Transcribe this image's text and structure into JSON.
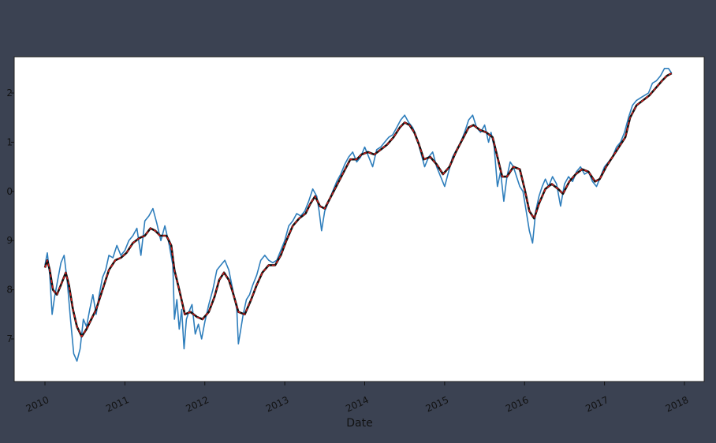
{
  "chart_data": {
    "type": "line",
    "title": "",
    "xlabel": "Date",
    "ylabel": "",
    "x_tick_labels": [
      "2010",
      "2011",
      "2012",
      "2013",
      "2014",
      "2015",
      "2016",
      "2017",
      "2018"
    ],
    "x_range": [
      2010.0,
      2018.0
    ],
    "y_tick_labels": [
      "7",
      "8",
      "9",
      "0",
      "1",
      "2"
    ],
    "y_range": [
      6.4,
      12.9
    ],
    "grid": false,
    "legend": "none",
    "series": [
      {
        "color": "#2e7ebc",
        "style": "solid",
        "points": [
          [
            2010.0,
            8.5
          ],
          [
            2010.03,
            8.75
          ],
          [
            2010.06,
            8.3
          ],
          [
            2010.09,
            7.5
          ],
          [
            2010.12,
            7.85
          ],
          [
            2010.16,
            8.2
          ],
          [
            2010.2,
            8.55
          ],
          [
            2010.24,
            8.7
          ],
          [
            2010.28,
            8.15
          ],
          [
            2010.32,
            7.4
          ],
          [
            2010.36,
            6.7
          ],
          [
            2010.4,
            6.55
          ],
          [
            2010.44,
            6.8
          ],
          [
            2010.48,
            7.4
          ],
          [
            2010.52,
            7.25
          ],
          [
            2010.56,
            7.6
          ],
          [
            2010.6,
            7.9
          ],
          [
            2010.64,
            7.5
          ],
          [
            2010.68,
            7.9
          ],
          [
            2010.72,
            8.25
          ],
          [
            2010.76,
            8.4
          ],
          [
            2010.8,
            8.7
          ],
          [
            2010.85,
            8.65
          ],
          [
            2010.9,
            8.9
          ],
          [
            2010.95,
            8.7
          ],
          [
            2011.0,
            8.8
          ],
          [
            2011.05,
            9.0
          ],
          [
            2011.1,
            9.1
          ],
          [
            2011.15,
            9.25
          ],
          [
            2011.2,
            8.7
          ],
          [
            2011.25,
            9.4
          ],
          [
            2011.3,
            9.5
          ],
          [
            2011.35,
            9.65
          ],
          [
            2011.4,
            9.35
          ],
          [
            2011.45,
            9.0
          ],
          [
            2011.5,
            9.3
          ],
          [
            2011.55,
            8.95
          ],
          [
            2011.6,
            8.5
          ],
          [
            2011.62,
            7.4
          ],
          [
            2011.65,
            7.8
          ],
          [
            2011.68,
            7.2
          ],
          [
            2011.71,
            7.6
          ],
          [
            2011.74,
            6.8
          ],
          [
            2011.77,
            7.4
          ],
          [
            2011.8,
            7.55
          ],
          [
            2011.84,
            7.7
          ],
          [
            2011.88,
            7.1
          ],
          [
            2011.92,
            7.3
          ],
          [
            2011.96,
            7.0
          ],
          [
            2012.0,
            7.35
          ],
          [
            2012.05,
            7.7
          ],
          [
            2012.1,
            8.0
          ],
          [
            2012.15,
            8.4
          ],
          [
            2012.2,
            8.5
          ],
          [
            2012.25,
            8.6
          ],
          [
            2012.3,
            8.4
          ],
          [
            2012.35,
            8.0
          ],
          [
            2012.4,
            7.6
          ],
          [
            2012.42,
            6.9
          ],
          [
            2012.45,
            7.2
          ],
          [
            2012.48,
            7.5
          ],
          [
            2012.52,
            7.8
          ],
          [
            2012.56,
            7.9
          ],
          [
            2012.6,
            8.1
          ],
          [
            2012.65,
            8.3
          ],
          [
            2012.7,
            8.6
          ],
          [
            2012.75,
            8.7
          ],
          [
            2012.8,
            8.6
          ],
          [
            2012.85,
            8.55
          ],
          [
            2012.9,
            8.6
          ],
          [
            2012.95,
            8.8
          ],
          [
            2013.0,
            9.0
          ],
          [
            2013.05,
            9.3
          ],
          [
            2013.1,
            9.4
          ],
          [
            2013.15,
            9.55
          ],
          [
            2013.2,
            9.5
          ],
          [
            2013.25,
            9.6
          ],
          [
            2013.3,
            9.8
          ],
          [
            2013.35,
            10.05
          ],
          [
            2013.4,
            9.9
          ],
          [
            2013.43,
            9.6
          ],
          [
            2013.46,
            9.2
          ],
          [
            2013.5,
            9.6
          ],
          [
            2013.55,
            9.8
          ],
          [
            2013.6,
            10.0
          ],
          [
            2013.65,
            10.2
          ],
          [
            2013.7,
            10.35
          ],
          [
            2013.75,
            10.55
          ],
          [
            2013.8,
            10.7
          ],
          [
            2013.85,
            10.8
          ],
          [
            2013.9,
            10.6
          ],
          [
            2013.95,
            10.7
          ],
          [
            2014.0,
            10.9
          ],
          [
            2014.05,
            10.7
          ],
          [
            2014.1,
            10.5
          ],
          [
            2014.15,
            10.85
          ],
          [
            2014.2,
            10.9
          ],
          [
            2014.25,
            11.0
          ],
          [
            2014.3,
            11.1
          ],
          [
            2014.35,
            11.15
          ],
          [
            2014.4,
            11.3
          ],
          [
            2014.45,
            11.45
          ],
          [
            2014.5,
            11.55
          ],
          [
            2014.55,
            11.4
          ],
          [
            2014.6,
            11.3
          ],
          [
            2014.65,
            11.1
          ],
          [
            2014.7,
            10.8
          ],
          [
            2014.75,
            10.5
          ],
          [
            2014.8,
            10.7
          ],
          [
            2014.85,
            10.8
          ],
          [
            2014.9,
            10.5
          ],
          [
            2014.95,
            10.3
          ],
          [
            2015.0,
            10.1
          ],
          [
            2015.05,
            10.4
          ],
          [
            2015.1,
            10.7
          ],
          [
            2015.15,
            10.85
          ],
          [
            2015.2,
            11.0
          ],
          [
            2015.25,
            11.2
          ],
          [
            2015.3,
            11.45
          ],
          [
            2015.35,
            11.55
          ],
          [
            2015.4,
            11.3
          ],
          [
            2015.45,
            11.2
          ],
          [
            2015.5,
            11.35
          ],
          [
            2015.55,
            11.0
          ],
          [
            2015.58,
            11.2
          ],
          [
            2015.62,
            10.9
          ],
          [
            2015.66,
            10.1
          ],
          [
            2015.7,
            10.4
          ],
          [
            2015.74,
            9.8
          ],
          [
            2015.78,
            10.3
          ],
          [
            2015.82,
            10.6
          ],
          [
            2015.86,
            10.5
          ],
          [
            2015.9,
            10.3
          ],
          [
            2015.94,
            10.1
          ],
          [
            2015.98,
            10.0
          ],
          [
            2016.02,
            9.6
          ],
          [
            2016.06,
            9.2
          ],
          [
            2016.1,
            8.95
          ],
          [
            2016.14,
            9.6
          ],
          [
            2016.18,
            9.9
          ],
          [
            2016.22,
            10.1
          ],
          [
            2016.26,
            10.25
          ],
          [
            2016.3,
            10.1
          ],
          [
            2016.35,
            10.3
          ],
          [
            2016.4,
            10.15
          ],
          [
            2016.45,
            9.7
          ],
          [
            2016.5,
            10.15
          ],
          [
            2016.55,
            10.3
          ],
          [
            2016.6,
            10.2
          ],
          [
            2016.65,
            10.4
          ],
          [
            2016.7,
            10.5
          ],
          [
            2016.75,
            10.35
          ],
          [
            2016.8,
            10.4
          ],
          [
            2016.85,
            10.2
          ],
          [
            2016.9,
            10.1
          ],
          [
            2016.95,
            10.3
          ],
          [
            2017.0,
            10.5
          ],
          [
            2017.05,
            10.6
          ],
          [
            2017.1,
            10.7
          ],
          [
            2017.15,
            10.9
          ],
          [
            2017.2,
            11.0
          ],
          [
            2017.25,
            11.2
          ],
          [
            2017.3,
            11.5
          ],
          [
            2017.35,
            11.75
          ],
          [
            2017.4,
            11.85
          ],
          [
            2017.45,
            11.9
          ],
          [
            2017.5,
            11.95
          ],
          [
            2017.55,
            12.0
          ],
          [
            2017.6,
            12.2
          ],
          [
            2017.65,
            12.25
          ],
          [
            2017.7,
            12.35
          ],
          [
            2017.75,
            12.5
          ],
          [
            2017.8,
            12.5
          ],
          [
            2017.84,
            12.4
          ]
        ]
      },
      {
        "color": "#d61c1c",
        "style": "dashed-over-black",
        "points": [
          [
            2010.0,
            8.45
          ],
          [
            2010.03,
            8.6
          ],
          [
            2010.06,
            8.4
          ],
          [
            2010.1,
            8.0
          ],
          [
            2010.15,
            7.9
          ],
          [
            2010.2,
            8.1
          ],
          [
            2010.26,
            8.35
          ],
          [
            2010.3,
            8.1
          ],
          [
            2010.35,
            7.6
          ],
          [
            2010.4,
            7.25
          ],
          [
            2010.46,
            7.05
          ],
          [
            2010.52,
            7.2
          ],
          [
            2010.58,
            7.4
          ],
          [
            2010.64,
            7.6
          ],
          [
            2010.72,
            8.0
          ],
          [
            2010.8,
            8.4
          ],
          [
            2010.88,
            8.6
          ],
          [
            2010.95,
            8.65
          ],
          [
            2011.02,
            8.75
          ],
          [
            2011.1,
            8.95
          ],
          [
            2011.18,
            9.05
          ],
          [
            2011.25,
            9.1
          ],
          [
            2011.32,
            9.25
          ],
          [
            2011.38,
            9.2
          ],
          [
            2011.44,
            9.1
          ],
          [
            2011.52,
            9.1
          ],
          [
            2011.58,
            8.9
          ],
          [
            2011.62,
            8.4
          ],
          [
            2011.68,
            8.0
          ],
          [
            2011.75,
            7.5
          ],
          [
            2011.82,
            7.55
          ],
          [
            2011.9,
            7.45
          ],
          [
            2011.97,
            7.4
          ],
          [
            2012.05,
            7.55
          ],
          [
            2012.12,
            7.85
          ],
          [
            2012.18,
            8.2
          ],
          [
            2012.24,
            8.35
          ],
          [
            2012.3,
            8.2
          ],
          [
            2012.35,
            7.95
          ],
          [
            2012.42,
            7.55
          ],
          [
            2012.5,
            7.5
          ],
          [
            2012.58,
            7.8
          ],
          [
            2012.65,
            8.1
          ],
          [
            2012.72,
            8.35
          ],
          [
            2012.8,
            8.5
          ],
          [
            2012.88,
            8.5
          ],
          [
            2012.95,
            8.7
          ],
          [
            2013.02,
            9.0
          ],
          [
            2013.1,
            9.3
          ],
          [
            2013.18,
            9.45
          ],
          [
            2013.26,
            9.55
          ],
          [
            2013.32,
            9.75
          ],
          [
            2013.38,
            9.9
          ],
          [
            2013.44,
            9.7
          ],
          [
            2013.5,
            9.65
          ],
          [
            2013.58,
            9.9
          ],
          [
            2013.66,
            10.15
          ],
          [
            2013.74,
            10.4
          ],
          [
            2013.82,
            10.65
          ],
          [
            2013.9,
            10.65
          ],
          [
            2013.96,
            10.75
          ],
          [
            2014.04,
            10.8
          ],
          [
            2014.12,
            10.75
          ],
          [
            2014.2,
            10.85
          ],
          [
            2014.28,
            10.95
          ],
          [
            2014.36,
            11.1
          ],
          [
            2014.44,
            11.3
          ],
          [
            2014.5,
            11.4
          ],
          [
            2014.56,
            11.35
          ],
          [
            2014.62,
            11.2
          ],
          [
            2014.68,
            10.95
          ],
          [
            2014.74,
            10.65
          ],
          [
            2014.82,
            10.7
          ],
          [
            2014.9,
            10.55
          ],
          [
            2014.98,
            10.35
          ],
          [
            2015.06,
            10.5
          ],
          [
            2015.14,
            10.8
          ],
          [
            2015.22,
            11.05
          ],
          [
            2015.3,
            11.3
          ],
          [
            2015.36,
            11.35
          ],
          [
            2015.44,
            11.25
          ],
          [
            2015.52,
            11.2
          ],
          [
            2015.6,
            11.1
          ],
          [
            2015.66,
            10.7
          ],
          [
            2015.72,
            10.3
          ],
          [
            2015.78,
            10.3
          ],
          [
            2015.86,
            10.5
          ],
          [
            2015.94,
            10.45
          ],
          [
            2016.0,
            10.05
          ],
          [
            2016.06,
            9.6
          ],
          [
            2016.12,
            9.45
          ],
          [
            2016.18,
            9.75
          ],
          [
            2016.26,
            10.05
          ],
          [
            2016.34,
            10.15
          ],
          [
            2016.42,
            10.05
          ],
          [
            2016.48,
            9.95
          ],
          [
            2016.56,
            10.2
          ],
          [
            2016.64,
            10.35
          ],
          [
            2016.72,
            10.45
          ],
          [
            2016.8,
            10.4
          ],
          [
            2016.88,
            10.2
          ],
          [
            2016.94,
            10.25
          ],
          [
            2017.02,
            10.5
          ],
          [
            2017.1,
            10.7
          ],
          [
            2017.18,
            10.9
          ],
          [
            2017.26,
            11.1
          ],
          [
            2017.32,
            11.5
          ],
          [
            2017.4,
            11.75
          ],
          [
            2017.48,
            11.85
          ],
          [
            2017.56,
            11.95
          ],
          [
            2017.64,
            12.1
          ],
          [
            2017.72,
            12.25
          ],
          [
            2017.78,
            12.35
          ],
          [
            2017.84,
            12.4
          ]
        ]
      }
    ]
  }
}
